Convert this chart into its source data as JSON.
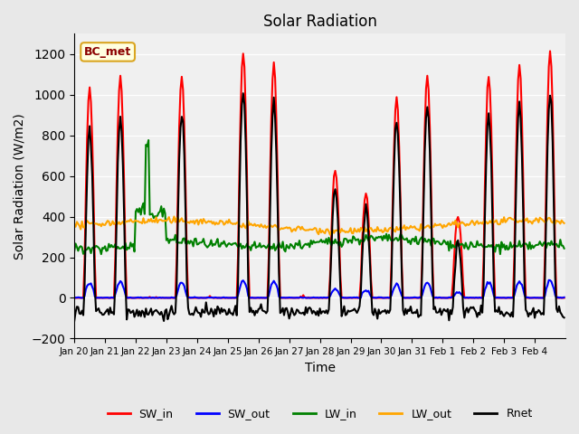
{
  "title": "Solar Radiation",
  "xlabel": "Time",
  "ylabel": "Solar Radiation (W/m2)",
  "ylim": [
    -200,
    1300
  ],
  "yticks": [
    -200,
    0,
    200,
    400,
    600,
    800,
    1000,
    1200
  ],
  "colors": {
    "SW_in": "red",
    "SW_out": "blue",
    "LW_in": "green",
    "LW_out": "orange",
    "Rnet": "black"
  },
  "linewidth": 1.5,
  "annotation_text": "BC_met",
  "background_color": "#e8e8e8",
  "plot_bg_color": "#f0f0f0",
  "tick_labels": [
    "Jan 20",
    "Jan 21",
    "Jan 22",
    "Jan 23",
    "Jan 24",
    "Jan 25",
    "Jan 26",
    "Jan 27",
    "Jan 28",
    "Jan 29",
    "Jan 30",
    "Jan 31",
    "Feb 1",
    "Feb 2",
    "Feb 3",
    "Feb 4"
  ]
}
